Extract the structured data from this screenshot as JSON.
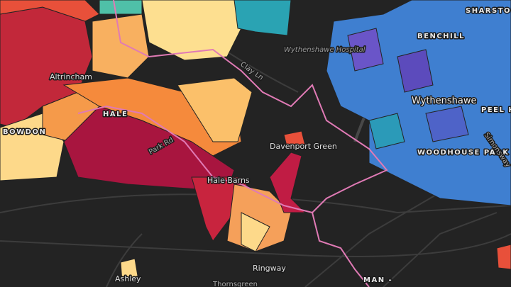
{
  "map": {
    "labels": [
      "Wythenshawe Hospital",
      "Clay Ln",
      "Altrincham",
      "HALE",
      "BOWDON",
      "Park Rd",
      "Hale Barns",
      "Davenport Green",
      "BENCHILL",
      "Wythenshawe",
      "WOODHOUSE PARK",
      "SHARSTON",
      "Ringway",
      "Thornsgreen",
      "Ashley",
      "MAN -",
      "Simonsway",
      "PEEL HALL"
    ]
  }
}
